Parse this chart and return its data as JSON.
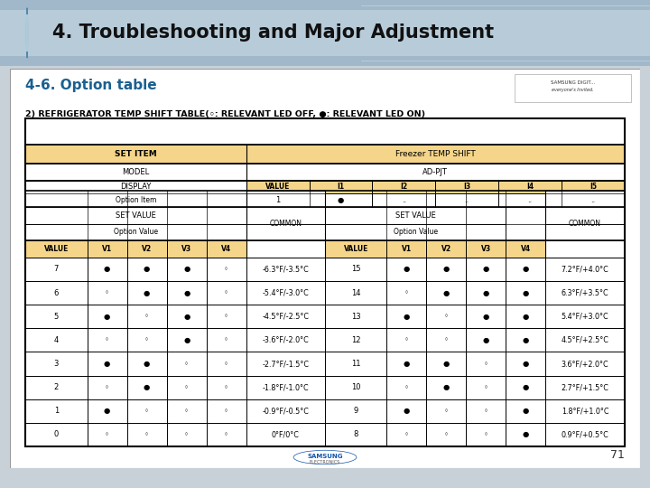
{
  "title": "4. Troubleshooting and Major Adjustment",
  "subtitle": "4-6. Option table",
  "table_title": "2) REFRIGERATOR TEMP SHIFT TABLE(◦: RELEVANT LED OFF, ●: RELEVANT LED ON)",
  "header_color": "#f5d58a",
  "white_color": "#ffffff",
  "filled": "●",
  "empty": "◦",
  "rows_left": [
    [
      "0",
      "◦",
      "◦",
      "◦",
      "◦",
      "0°F/0°C"
    ],
    [
      "1",
      "●",
      "◦",
      "◦",
      "◦",
      "-0.9°F/-0.5°C"
    ],
    [
      "2",
      "◦",
      "●",
      "◦",
      "◦",
      "-1.8°F/-1.0°C"
    ],
    [
      "3",
      "●",
      "●",
      "◦",
      "◦",
      "-2.7°F/-1.5°C"
    ],
    [
      "4",
      "◦",
      "◦",
      "●",
      "◦",
      "-3.6°F/-2.0°C"
    ],
    [
      "5",
      "●",
      "◦",
      "●",
      "◦",
      "-4.5°F/-2.5°C"
    ],
    [
      "6",
      "◦",
      "●",
      "●",
      "◦",
      "-5.4°F/-3.0°C"
    ],
    [
      "7",
      "●",
      "●",
      "●",
      "◦",
      "-6.3°F/-3.5°C"
    ]
  ],
  "rows_right": [
    [
      "8",
      "◦",
      "◦",
      "◦",
      "●",
      "0.9°F/+0.5°C"
    ],
    [
      "9",
      "●",
      "◦",
      "◦",
      "●",
      "1.8°F/+1.0°C"
    ],
    [
      "10",
      "◦",
      "●",
      "◦",
      "●",
      "2.7°F/+1.5°C"
    ],
    [
      "11",
      "●",
      "●",
      "◦",
      "●",
      "3.6°F/+2.0°C"
    ],
    [
      "12",
      "◦",
      "◦",
      "●",
      "●",
      "4.5°F/+2.5°C"
    ],
    [
      "13",
      "●",
      "◦",
      "●",
      "●",
      "5.4°F/+3.0°C"
    ],
    [
      "14",
      "◦",
      "●",
      "●",
      "●",
      "6.3°F/+3.5°C"
    ],
    [
      "15",
      "●",
      "●",
      "●",
      "●",
      "7.2°F/+4.0°C"
    ]
  ]
}
